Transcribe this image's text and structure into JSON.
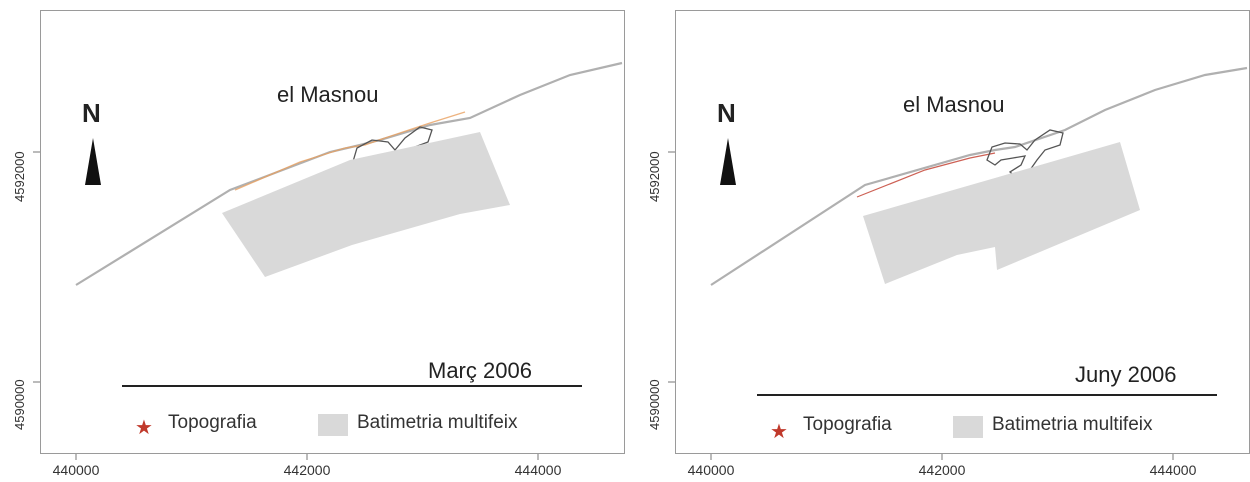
{
  "maps": [
    {
      "place_label": "el Masnou",
      "north_label": "N",
      "period": "Març 2006",
      "x_ticks": [
        "440000",
        "442000",
        "444000"
      ],
      "y_ticks": [
        "4592000",
        "4590000"
      ],
      "legend": [
        {
          "label": "Topografia",
          "symbol": "star",
          "color": "#c0392b"
        },
        {
          "label": "Batimetria multifeix",
          "symbol": "square",
          "color": "#d9d9d9"
        }
      ],
      "survey_line_color": "#e8a060"
    },
    {
      "place_label": "el Masnou",
      "north_label": "N",
      "period": "Juny 2006",
      "x_ticks": [
        "440000",
        "442000",
        "444000"
      ],
      "y_ticks": [
        "4592000",
        "4590000"
      ],
      "legend": [
        {
          "label": "Topografia",
          "symbol": "star",
          "color": "#c0392b"
        },
        {
          "label": "Batimetria multifeix",
          "symbol": "square",
          "color": "#d9d9d9"
        }
      ],
      "survey_line_color": "#c0392b"
    }
  ]
}
